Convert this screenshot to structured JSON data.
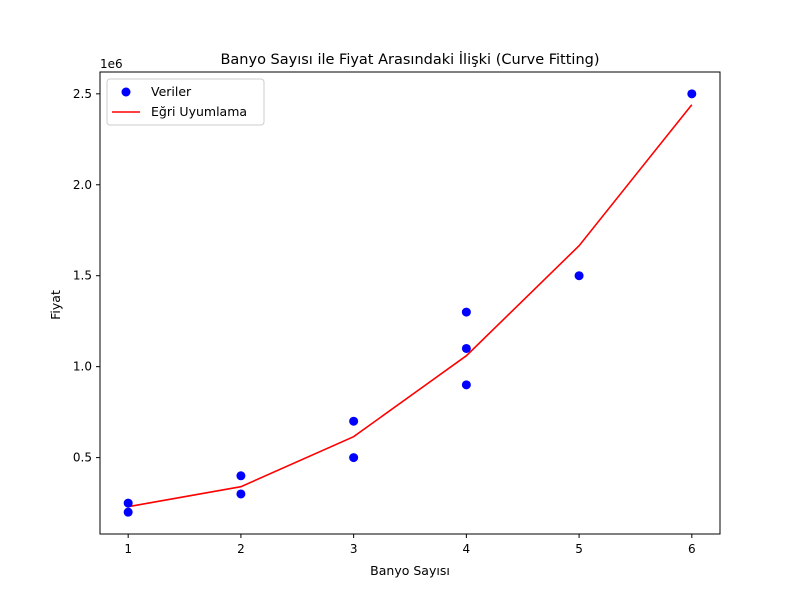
{
  "chart_data": {
    "type": "scatter",
    "title": "Banyo Sayısı ile Fiyat Arasındaki İlişki (Curve Fitting)",
    "xlabel": "Banyo Sayısı",
    "ylabel": "Fiyat",
    "y_offset_label": "1e6",
    "xlim": [
      0.75,
      6.25
    ],
    "ylim": [
      80000,
      2620000
    ],
    "x_ticks": [
      1,
      2,
      3,
      4,
      5,
      6
    ],
    "x_tick_labels": [
      "1",
      "2",
      "3",
      "4",
      "5",
      "6"
    ],
    "y_ticks": [
      500000,
      1000000,
      1500000,
      2000000,
      2500000
    ],
    "y_tick_labels": [
      "0.5",
      "1.0",
      "1.5",
      "2.0",
      "2.5"
    ],
    "grid": false,
    "legend_position": "upper left",
    "series": [
      {
        "name": "Veriler",
        "type": "scatter",
        "color": "#0000ff",
        "points": [
          {
            "x": 1,
            "y": 250000
          },
          {
            "x": 1,
            "y": 200000
          },
          {
            "x": 2,
            "y": 400000
          },
          {
            "x": 2,
            "y": 300000
          },
          {
            "x": 3,
            "y": 700000
          },
          {
            "x": 3,
            "y": 500000
          },
          {
            "x": 4,
            "y": 1300000
          },
          {
            "x": 4,
            "y": 1100000
          },
          {
            "x": 4,
            "y": 900000
          },
          {
            "x": 5,
            "y": 1500000
          },
          {
            "x": 6,
            "y": 2500000
          }
        ]
      },
      {
        "name": "Eğri Uyumlama",
        "type": "line",
        "color": "#ff0000",
        "points": [
          {
            "x": 1,
            "y": 230000
          },
          {
            "x": 2,
            "y": 340000
          },
          {
            "x": 3,
            "y": 615000
          },
          {
            "x": 4,
            "y": 1060000
          },
          {
            "x": 5,
            "y": 1665000
          },
          {
            "x": 6,
            "y": 2440000
          }
        ]
      }
    ]
  }
}
